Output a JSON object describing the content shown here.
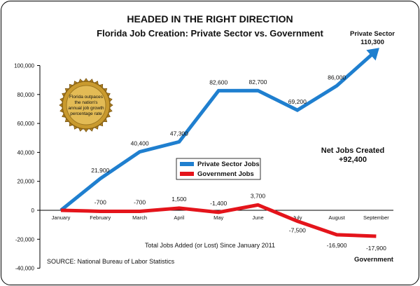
{
  "chart_data": {
    "type": "line",
    "title": "HEADED IN THE RIGHT DIRECTION",
    "subtitle": "Florida Job Creation: Private Sector vs. Government",
    "categories": [
      "January",
      "February",
      "March",
      "April",
      "May",
      "June",
      "July",
      "August",
      "September"
    ],
    "ylim": [
      -40000,
      100000
    ],
    "y_ticks": [
      "100,000",
      "80,000",
      "60,000",
      "40,000",
      "20,000",
      "0",
      "-20,000",
      "-40,000"
    ],
    "series": [
      {
        "name": "Private Sector Jobs",
        "color": "#1f7fcf",
        "values": [
          0,
          21900,
          40400,
          47300,
          82600,
          82700,
          69200,
          86000,
          110300
        ],
        "labels": [
          "",
          "21,900",
          "40,400",
          "47,300",
          "82,600",
          "82,700",
          "69,200",
          "86,000",
          ""
        ]
      },
      {
        "name": "Government Jobs",
        "color": "#e4141b",
        "values": [
          0,
          -700,
          -700,
          1500,
          -1400,
          3700,
          -7500,
          -16900,
          -17900
        ],
        "labels": [
          "",
          "-700",
          "-700",
          "1,500",
          "-1,400",
          "3,700",
          "-7,500",
          "-16,900",
          "-17,900"
        ]
      }
    ],
    "end_label_private": [
      "Private Sector",
      "110,300"
    ],
    "end_label_government": "Government",
    "net_jobs": [
      "Net Jobs Created",
      "+92,400"
    ],
    "seal_text": [
      "Florida outpaces",
      "the nation's",
      "annual job growth",
      "percentage rate"
    ],
    "xlabel": "Total Jobs Added (or Lost) Since January 2011",
    "source": "SOURCE: National Bureau of Labor Statistics",
    "grid": "none",
    "legend_position": "center"
  }
}
